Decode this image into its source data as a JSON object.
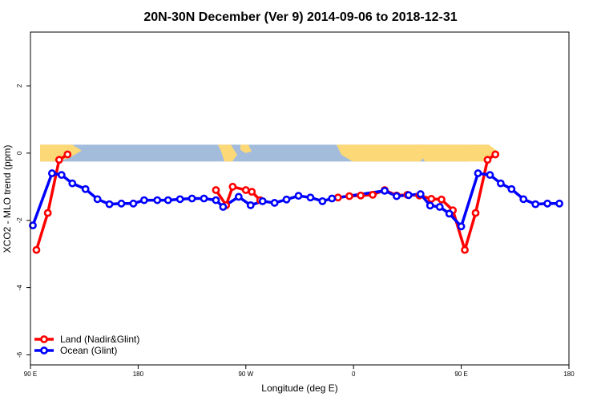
{
  "chart_data": {
    "type": "line",
    "title": "20N-30N December (Ver 9)   2014-09-06 to 2018-12-31",
    "xlabel": "Longitude (deg E)",
    "ylabel": "XCO2 - MLO trend (ppm)",
    "xlim": [
      90,
      540
    ],
    "ylim": [
      -6.3,
      3.6
    ],
    "x_ticks": [
      {
        "value": 90,
        "label": "90 E"
      },
      {
        "value": 180,
        "label": "180"
      },
      {
        "value": 270,
        "label": "90 W"
      },
      {
        "value": 360,
        "label": "0"
      },
      {
        "value": 450,
        "label": "90 E"
      },
      {
        "value": 540,
        "label": "180"
      }
    ],
    "y_ticks": [
      {
        "value": 2,
        "label": "2"
      },
      {
        "value": 0,
        "label": "0"
      },
      {
        "value": -2,
        "label": "-2"
      },
      {
        "value": -4,
        "label": "-4"
      },
      {
        "value": -6,
        "label": "-6"
      }
    ],
    "map_band": {
      "ymin": -0.25,
      "ymax": 0.25,
      "ocean_color": "#a3bcdc",
      "land_color": "#fcd877"
    },
    "legend_position": "bottom-left",
    "series": [
      {
        "name": "Land (Nadir&Glint)",
        "color": "#ff0000",
        "segments": [
          [
            [
              95,
              -2.88
            ],
            [
              104.5,
              -1.78
            ],
            [
              114,
              -0.2
            ],
            [
              121,
              -0.04
            ]
          ],
          [
            [
              245,
              -1.1
            ],
            [
              253.5,
              -1.55
            ],
            [
              259,
              -1.0
            ],
            [
              270,
              -1.1
            ],
            [
              275,
              -1.15
            ],
            [
              282,
              -1.4
            ]
          ],
          [
            [
              347,
              -1.32
            ],
            [
              356.5,
              -1.28
            ],
            [
              366,
              -1.26
            ],
            [
              376,
              -1.24
            ],
            [
              386,
              -1.1
            ],
            [
              396,
              -1.26
            ],
            [
              405,
              -1.24
            ],
            [
              415,
              -1.26
            ],
            [
              425,
              -1.36
            ],
            [
              433.5,
              -1.38
            ],
            [
              443,
              -1.7
            ],
            [
              453,
              -2.88
            ],
            [
              462,
              -1.78
            ],
            [
              472,
              -0.2
            ],
            [
              478.5,
              -0.04
            ]
          ]
        ]
      },
      {
        "name": "Ocean (Glint)",
        "color": "#0000ff",
        "segments": [
          [
            [
              92,
              -2.15
            ],
            [
              108,
              -0.6
            ],
            [
              116,
              -0.65
            ],
            [
              125,
              -0.9
            ],
            [
              136,
              -1.07
            ],
            [
              146,
              -1.37
            ],
            [
              156,
              -1.52
            ],
            [
              166,
              -1.5
            ],
            [
              176,
              -1.5
            ],
            [
              185,
              -1.4
            ],
            [
              196,
              -1.4
            ],
            [
              205,
              -1.4
            ],
            [
              215,
              -1.37
            ],
            [
              225,
              -1.35
            ],
            [
              235,
              -1.35
            ],
            [
              245,
              -1.4
            ],
            [
              251,
              -1.6
            ],
            [
              264,
              -1.3
            ],
            [
              274,
              -1.55
            ],
            [
              284,
              -1.43
            ],
            [
              294,
              -1.48
            ],
            [
              304,
              -1.38
            ],
            [
              314,
              -1.27
            ],
            [
              324,
              -1.32
            ],
            [
              334,
              -1.43
            ],
            [
              342,
              -1.35
            ],
            [
              386,
              -1.12
            ],
            [
              396,
              -1.28
            ],
            [
              406,
              -1.25
            ],
            [
              416,
              -1.22
            ],
            [
              424,
              -1.56
            ],
            [
              432,
              -1.6
            ],
            [
              440,
              -1.8
            ],
            [
              450,
              -2.18
            ],
            [
              464,
              -0.6
            ],
            [
              474,
              -0.65
            ],
            [
              483,
              -0.9
            ],
            [
              492,
              -1.07
            ],
            [
              502,
              -1.37
            ],
            [
              512,
              -1.52
            ],
            [
              522,
              -1.5
            ],
            [
              532,
              -1.5
            ]
          ]
        ]
      }
    ]
  }
}
